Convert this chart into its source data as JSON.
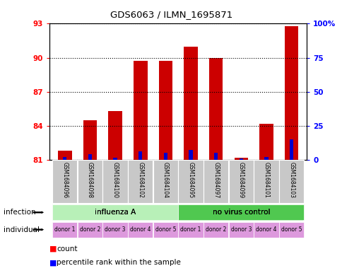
{
  "title": "GDS6063 / ILMN_1695871",
  "samples": [
    "GSM1684096",
    "GSM1684098",
    "GSM1684100",
    "GSM1684102",
    "GSM1684104",
    "GSM1684095",
    "GSM1684097",
    "GSM1684099",
    "GSM1684101",
    "GSM1684103"
  ],
  "red_values": [
    81.8,
    84.5,
    85.3,
    89.7,
    89.7,
    91.0,
    90.0,
    81.2,
    84.2,
    92.8
  ],
  "blue_values": [
    2.0,
    4.0,
    1.5,
    6.0,
    5.0,
    7.0,
    5.0,
    1.0,
    2.0,
    15.0
  ],
  "y_min": 81,
  "y_max": 93,
  "y_ticks": [
    81,
    84,
    87,
    90,
    93
  ],
  "y2_ticks": [
    0,
    25,
    50,
    75,
    100
  ],
  "infection_groups": [
    {
      "label": "influenza A",
      "start": 0,
      "end": 5,
      "color": "#b8f0b8"
    },
    {
      "label": "no virus control",
      "start": 5,
      "end": 10,
      "color": "#50c850"
    }
  ],
  "individual_labels": [
    "donor 1",
    "donor 2",
    "donor 3",
    "donor 4",
    "donor 5",
    "donor 1",
    "donor 2",
    "donor 3",
    "donor 4",
    "donor 5"
  ],
  "individual_color": "#dd99dd",
  "bar_width": 0.55,
  "red_color": "#cc0000",
  "blue_color": "#0000cc",
  "sample_box_color": "#c8c8c8"
}
